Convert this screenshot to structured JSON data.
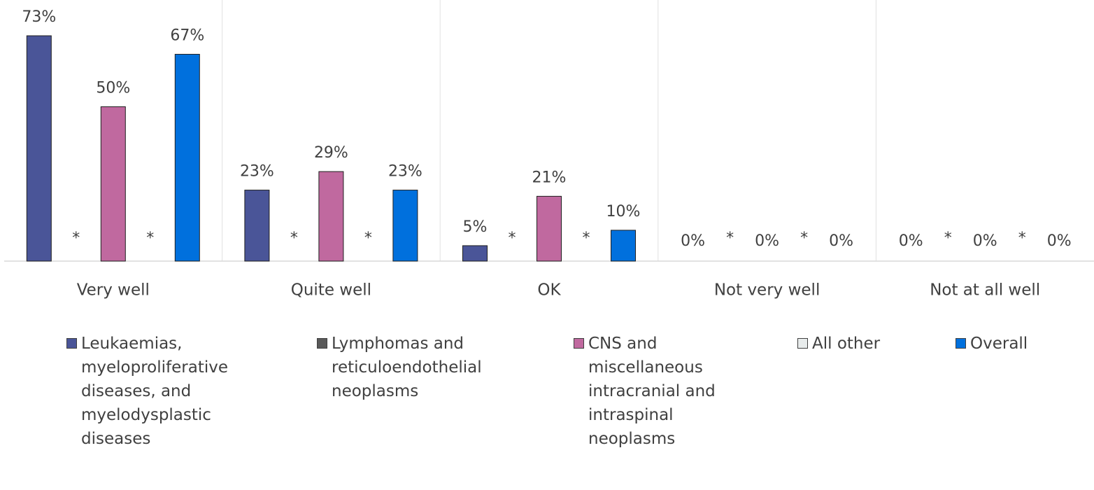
{
  "chart_data": {
    "type": "bar",
    "categories": [
      "Very well",
      "Quite well",
      "OK",
      "Not very well",
      "Not at all well"
    ],
    "series": [
      {
        "name": "Leukaemias, myeloproliferative diseases, and myelodysplastic diseases",
        "color": "#4a5598",
        "values": [
          73,
          23,
          5,
          0,
          0
        ],
        "value_labels": [
          "73%",
          "23%",
          "5%",
          "0%",
          "0%"
        ]
      },
      {
        "name": "Lymphomas and reticuloendothelial neoplasms",
        "color": "#595959",
        "values": [
          null,
          null,
          null,
          null,
          null
        ],
        "value_labels": [
          "*",
          "*",
          "*",
          "*",
          "*"
        ]
      },
      {
        "name": "CNS and miscellaneous intracranial and intraspinal neoplasms",
        "color": "#c0699f",
        "values": [
          50,
          29,
          21,
          0,
          0
        ],
        "value_labels": [
          "50%",
          "29%",
          "21%",
          "0%",
          "0%"
        ]
      },
      {
        "name": "All other",
        "color": "#e8ecec",
        "values": [
          null,
          null,
          null,
          null,
          null
        ],
        "value_labels": [
          "*",
          "*",
          "*",
          "*",
          "*"
        ]
      },
      {
        "name": "Overall",
        "color": "#0070dd",
        "values": [
          67,
          23,
          10,
          0,
          0
        ],
        "value_labels": [
          "67%",
          "23%",
          "10%",
          "0%",
          "0%"
        ]
      }
    ],
    "legend": "bottom"
  }
}
